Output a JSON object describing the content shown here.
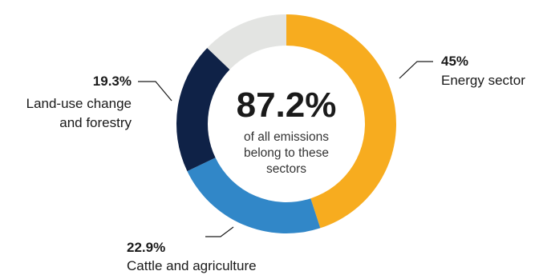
{
  "chart_data": {
    "type": "pie",
    "donut": true,
    "center": {
      "value": "87.2%",
      "caption": [
        "of all emissions",
        "belong to these",
        "sectors"
      ]
    },
    "slices": [
      {
        "label": "Energy sector",
        "value": 45,
        "display": "45%",
        "color": "#F7AC1F"
      },
      {
        "label": "Cattle and agriculture",
        "value": 22.9,
        "display": "22.9%",
        "color": "#3187C8"
      },
      {
        "label": [
          "Land-use change",
          "and forestry"
        ],
        "value": 19.3,
        "display": "19.3%",
        "color": "#0F2247"
      },
      {
        "label": "",
        "value": 12.8,
        "display": "",
        "color": "#E3E4E2"
      }
    ]
  }
}
